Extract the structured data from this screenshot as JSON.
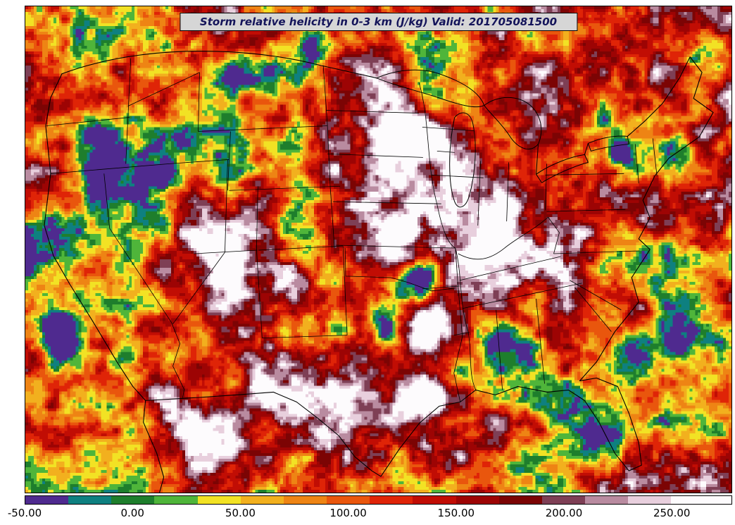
{
  "title": {
    "text": "Storm relative helicity in 0-3 km (J/kg) Valid: 201705081500"
  },
  "colors": {
    "page_bg": "#ffffff",
    "frame": "#000000",
    "title_bg": "#d6d6d6",
    "title_text": "#14145a",
    "border_lines": "#000000"
  },
  "chart_data": {
    "type": "heatmap",
    "title": "Storm relative helicity in 0-3 km (J/kg) Valid: 201705081500",
    "variable": "storm relative helicity 0-3 km",
    "units": "J/kg",
    "valid_time": "201705081500",
    "region": "Continental United States with state borders",
    "legend_position": "bottom horizontal colorbar",
    "colorbar": {
      "orientation": "horizontal",
      "min": -50,
      "max": 278,
      "tick_values": [
        -50,
        0,
        50,
        100,
        150,
        200,
        250
      ],
      "tick_labels": [
        "-50.00",
        "0.00",
        "50.00",
        "100.00",
        "150.00",
        "200.00",
        "250.00"
      ],
      "segments": [
        {
          "from": -50,
          "to": -30,
          "color": "#4f2a8f"
        },
        {
          "from": -30,
          "to": -10,
          "color": "#0e8080"
        },
        {
          "from": -10,
          "to": 10,
          "color": "#1e7e2c"
        },
        {
          "from": 10,
          "to": 30,
          "color": "#4fb53a"
        },
        {
          "from": 30,
          "to": 50,
          "color": "#f2e224"
        },
        {
          "from": 50,
          "to": 70,
          "color": "#f2b01e"
        },
        {
          "from": 70,
          "to": 90,
          "color": "#ee8414"
        },
        {
          "from": 90,
          "to": 110,
          "color": "#e9560d"
        },
        {
          "from": 110,
          "to": 130,
          "color": "#df2407"
        },
        {
          "from": 130,
          "to": 150,
          "color": "#c10d04"
        },
        {
          "from": 150,
          "to": 170,
          "color": "#9d0404"
        },
        {
          "from": 170,
          "to": 190,
          "color": "#7c0404"
        },
        {
          "from": 190,
          "to": 210,
          "color": "#7e3f55"
        },
        {
          "from": 210,
          "to": 230,
          "color": "#b98ba0"
        },
        {
          "from": 230,
          "to": 250,
          "color": "#e8cfdd"
        },
        {
          "from": 250,
          "to": 278,
          "color": "#fdfbfd"
        }
      ]
    },
    "field_style": {
      "seed": 1337,
      "mid": 132,
      "spread": 560,
      "octave_weights": [
        0.38,
        0.3,
        0.2,
        0.12
      ],
      "aspect": 1.452
    },
    "field_features": [
      {
        "x": 0.565,
        "y": 0.33,
        "r": 0.16,
        "a": 185,
        "note": "white maximum upper Midwest"
      },
      {
        "x": 0.65,
        "y": 0.5,
        "r": 0.1,
        "a": 150,
        "note": "white maximum Illinois/Indiana"
      },
      {
        "x": 0.5,
        "y": 0.17,
        "r": 0.09,
        "a": 120,
        "note": "pale area Dakotas/Minnesota"
      },
      {
        "x": 0.56,
        "y": 0.65,
        "r": 0.075,
        "a": 200,
        "note": "white maximum Oklahoma/north Texas"
      },
      {
        "x": 0.553,
        "y": 0.562,
        "r": 0.045,
        "a": -265,
        "note": "purple minimum central Oklahoma"
      },
      {
        "x": 0.508,
        "y": 0.65,
        "r": 0.035,
        "a": -175
      },
      {
        "x": 0.323,
        "y": 0.62,
        "r": 0.12,
        "a": 165,
        "note": "white maximum Utah/Nevada"
      },
      {
        "x": 0.3,
        "y": 0.45,
        "r": 0.07,
        "a": 110
      },
      {
        "x": 0.23,
        "y": 0.87,
        "r": 0.07,
        "a": 150,
        "note": "white blobs Arizona/Sonora"
      },
      {
        "x": 0.265,
        "y": 0.93,
        "r": 0.05,
        "a": 120
      },
      {
        "x": 0.36,
        "y": 0.55,
        "r": 0.045,
        "a": 110
      },
      {
        "x": 0.05,
        "y": 0.665,
        "r": 0.045,
        "a": -235,
        "note": "purple minimum California coast"
      },
      {
        "x": 0.05,
        "y": 0.48,
        "r": 0.14,
        "a": -85,
        "note": "yellow band along West Coast"
      },
      {
        "x": 0.115,
        "y": 0.25,
        "r": 0.11,
        "a": -115,
        "note": "green Pacific Northwest"
      },
      {
        "x": 0.36,
        "y": 0.13,
        "r": 0.11,
        "a": -105,
        "note": "green along Montana border"
      },
      {
        "x": 0.41,
        "y": 0.085,
        "r": 0.035,
        "a": -150
      },
      {
        "x": 0.58,
        "y": 0.11,
        "r": 0.08,
        "a": -120,
        "note": "green near Lake Superior"
      },
      {
        "x": 0.83,
        "y": 0.27,
        "r": 0.07,
        "a": -155,
        "note": "green/purple Ontario and upstate NY"
      },
      {
        "x": 0.845,
        "y": 0.295,
        "r": 0.03,
        "a": -130
      },
      {
        "x": 0.92,
        "y": 0.3,
        "r": 0.05,
        "a": -195,
        "note": "purple New England"
      },
      {
        "x": 0.93,
        "y": 0.665,
        "r": 0.065,
        "a": -150,
        "note": "teal streak Carolina coast"
      },
      {
        "x": 0.865,
        "y": 0.73,
        "r": 0.06,
        "a": -125,
        "note": "green Georgia"
      },
      {
        "x": 0.615,
        "y": 0.755,
        "r": 0.05,
        "a": -120,
        "note": "green Louisiana/Mississippi"
      },
      {
        "x": 0.69,
        "y": 0.7,
        "r": 0.05,
        "a": -105
      },
      {
        "x": 0.87,
        "y": 0.63,
        "r": 0.04,
        "a": 125
      },
      {
        "x": 0.885,
        "y": 0.44,
        "r": 0.04,
        "a": 130
      },
      {
        "x": 0.47,
        "y": 0.88,
        "r": 0.16,
        "a": 45,
        "note": "deep red south Texas/Mexico"
      },
      {
        "x": 0.56,
        "y": 0.78,
        "r": 0.04,
        "a": 110
      },
      {
        "x": 0.085,
        "y": 0.07,
        "r": 0.05,
        "a": -120
      },
      {
        "x": 0.96,
        "y": 0.1,
        "r": 0.05,
        "a": -140
      },
      {
        "x": 0.82,
        "y": 0.87,
        "r": 0.05,
        "a": -90,
        "note": "yellow/green Florida"
      }
    ]
  }
}
